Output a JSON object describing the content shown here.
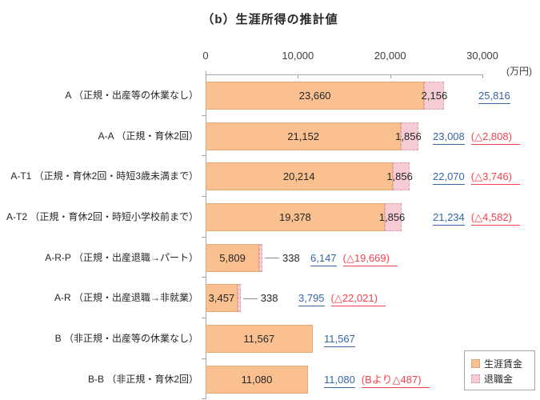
{
  "title": "（b）生涯所得の推計値",
  "axis": {
    "ticks": [
      "0",
      "10,000",
      "20,000",
      "30,000"
    ],
    "unit": "(万円)"
  },
  "legend": [
    {
      "label": "生涯賃金",
      "color": "#FAC090"
    },
    {
      "label": "退職金",
      "color": "#F6CCD4"
    }
  ],
  "colors": {
    "wage_bar": "#FAC090",
    "retirement_bar": "#F6CCD4",
    "total_text": "#3566a5",
    "diff_text": "#f4434e",
    "axis_line": "#a6a6a6"
  },
  "rows": [
    {
      "label": "A （正規・出産等の休業なし）",
      "wage_label": "23,660",
      "retirement_label": "2,156",
      "total_label": "25,816",
      "diff_label": ""
    },
    {
      "label": "A-A （正規・育休2回）",
      "wage_label": "21,152",
      "retirement_label": "1,856",
      "total_label": "23,008",
      "diff_label": "(△2,808)"
    },
    {
      "label": "A-T1 （正規・育休2回・時短3歳未満まで）",
      "wage_label": "20,214",
      "retirement_label": "1,856",
      "total_label": "22,070",
      "diff_label": "(△3,746)"
    },
    {
      "label": "A-T2 （正規・育休2回・時短小学校前まで）",
      "wage_label": "19,378",
      "retirement_label": "1,856",
      "total_label": "21,234",
      "diff_label": "(△4,582)"
    },
    {
      "label": "A-R-P （正規・出産退職→パート）",
      "wage_label": "5,809",
      "retirement_label": "338",
      "total_label": "6,147",
      "diff_label": "(△19,669)",
      "leader": true
    },
    {
      "label": "A-R （正規・出産退職→非就業）",
      "wage_label": "3,457",
      "retirement_label": "338",
      "total_label": "3,795",
      "diff_label": "(△22,021)",
      "leader": true
    },
    {
      "label": "B （非正規・出産等の休業なし）",
      "wage_label": "11,567",
      "retirement_label": "",
      "total_label": "11,567",
      "diff_label": ""
    },
    {
      "label": "B-B （非正規・育休2回）",
      "wage_label": "11,080",
      "retirement_label": "",
      "total_label": "11,080",
      "diff_label": "(Bより△487)"
    }
  ],
  "chart_data": {
    "type": "bar",
    "orientation": "horizontal",
    "title": "（b）生涯所得の推計値",
    "unit": "万円",
    "categories": [
      "A（正規・出産等の休業なし）",
      "A-A（正規・育休2回）",
      "A-T1（正規・育休2回・時短3歳未満まで）",
      "A-T2（正規・育休2回・時短小学校前まで）",
      "A-R-P（正規・出産退職→パート）",
      "A-R（正規・出産退職→非就業）",
      "B（非正規・出産等の休業なし）",
      "B-B（非正規・育休2回）"
    ],
    "series": [
      {
        "name": "生涯賃金",
        "values": [
          23660,
          21152,
          20214,
          19378,
          5809,
          3457,
          11567,
          11080
        ]
      },
      {
        "name": "退職金",
        "values": [
          2156,
          1856,
          1856,
          1856,
          338,
          338,
          0,
          0
        ]
      }
    ],
    "totals": [
      25816,
      23008,
      22070,
      21234,
      6147,
      3795,
      11567,
      11080
    ],
    "differences_vs_baseline": [
      null,
      -2808,
      -3746,
      -4582,
      -19669,
      -22021,
      null,
      -487
    ],
    "xlim": [
      0,
      30000
    ],
    "x_ticks": [
      0,
      10000,
      20000,
      30000
    ],
    "grid": false,
    "legend_position": "bottom-right"
  }
}
